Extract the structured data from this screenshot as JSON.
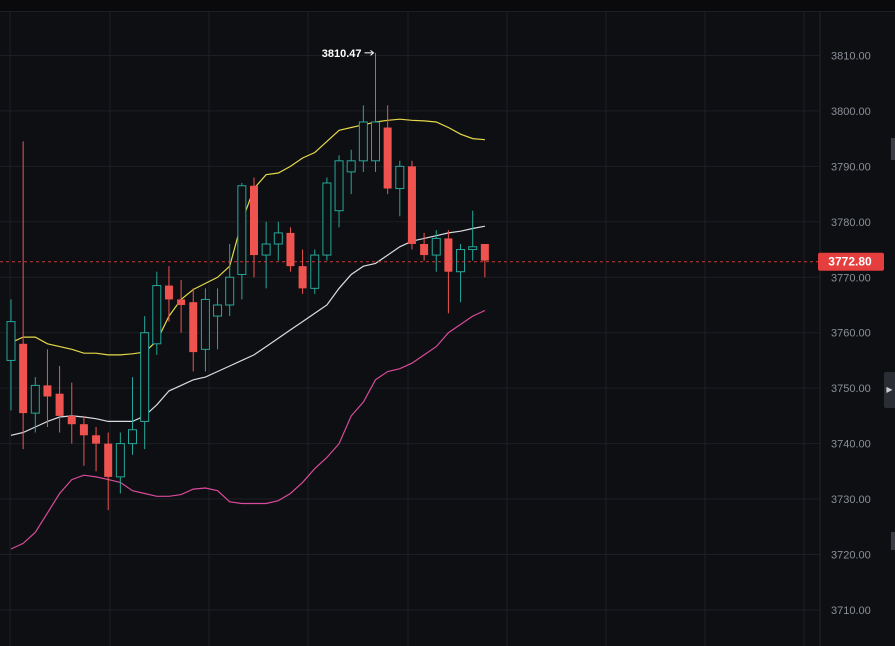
{
  "chart_data": {
    "type": "candlestick",
    "y_axis": {
      "ticks": [
        "3810.00",
        "3800.00",
        "3790.00",
        "3780.00",
        "3770.00",
        "3760.00",
        "3750.00",
        "3740.00",
        "3730.00",
        "3720.00",
        "3710.00"
      ],
      "range": [
        3703.5,
        3820
      ]
    },
    "current_price": {
      "value": 3772.8,
      "label": "3772.80"
    },
    "high_annotation": {
      "value": 3810.47,
      "label": "3810.47"
    },
    "candles": [
      {
        "open": 3755.0,
        "high": 3766.0,
        "low": 3746.0,
        "close": 3762.0
      },
      {
        "open": 3758.0,
        "high": 3794.5,
        "low": 3739.0,
        "close": 3745.5
      },
      {
        "open": 3745.5,
        "high": 3752.0,
        "low": 3742.0,
        "close": 3750.5
      },
      {
        "open": 3750.5,
        "high": 3757.0,
        "low": 3743.0,
        "close": 3748.5
      },
      {
        "open": 3749.0,
        "high": 3754.0,
        "low": 3742.0,
        "close": 3745.0
      },
      {
        "open": 3745.0,
        "high": 3751.0,
        "low": 3740.0,
        "close": 3743.5
      },
      {
        "open": 3743.5,
        "high": 3745.0,
        "low": 3736.0,
        "close": 3741.5
      },
      {
        "open": 3741.5,
        "high": 3743.0,
        "low": 3735.0,
        "close": 3740.0
      },
      {
        "open": 3740.0,
        "high": 3742.0,
        "low": 3728.0,
        "close": 3734.0
      },
      {
        "open": 3734.0,
        "high": 3742.0,
        "low": 3731.0,
        "close": 3740.0
      },
      {
        "open": 3740.0,
        "high": 3752.0,
        "low": 3738.0,
        "close": 3742.5
      },
      {
        "open": 3744.0,
        "high": 3763.0,
        "low": 3739.0,
        "close": 3760.0
      },
      {
        "open": 3758.0,
        "high": 3771.0,
        "low": 3756.0,
        "close": 3768.5
      },
      {
        "open": 3768.5,
        "high": 3772.0,
        "low": 3762.0,
        "close": 3766.0
      },
      {
        "open": 3766.0,
        "high": 3769.5,
        "low": 3760.0,
        "close": 3765.0
      },
      {
        "open": 3765.5,
        "high": 3768.0,
        "low": 3753.0,
        "close": 3756.5
      },
      {
        "open": 3757.0,
        "high": 3768.0,
        "low": 3753.0,
        "close": 3766.0
      },
      {
        "open": 3763.0,
        "high": 3768.0,
        "low": 3757.0,
        "close": 3765.0
      },
      {
        "open": 3765.0,
        "high": 3776.0,
        "low": 3763.0,
        "close": 3770.0
      },
      {
        "open": 3770.5,
        "high": 3787.0,
        "low": 3766.0,
        "close": 3786.5
      },
      {
        "open": 3786.5,
        "high": 3788.0,
        "low": 3770.0,
        "close": 3774.0
      },
      {
        "open": 3774.0,
        "high": 3780.0,
        "low": 3768.0,
        "close": 3776.0
      },
      {
        "open": 3776.0,
        "high": 3780.0,
        "low": 3773.0,
        "close": 3778.0
      },
      {
        "open": 3778.0,
        "high": 3779.0,
        "low": 3771.0,
        "close": 3772.0
      },
      {
        "open": 3772.0,
        "high": 3775.0,
        "low": 3767.0,
        "close": 3768.0
      },
      {
        "open": 3768.0,
        "high": 3775.0,
        "low": 3767.0,
        "close": 3774.0
      },
      {
        "open": 3774.0,
        "high": 3788.0,
        "low": 3773.0,
        "close": 3787.0
      },
      {
        "open": 3782.0,
        "high": 3792.0,
        "low": 3779.0,
        "close": 3791.0
      },
      {
        "open": 3789.0,
        "high": 3793.0,
        "low": 3785.0,
        "close": 3791.0
      },
      {
        "open": 3791.0,
        "high": 3801.0,
        "low": 3789.0,
        "close": 3798.0
      },
      {
        "open": 3791.0,
        "high": 3810.47,
        "low": 3789.0,
        "close": 3798.0
      },
      {
        "open": 3797.0,
        "high": 3801.0,
        "low": 3785.0,
        "close": 3786.0
      },
      {
        "open": 3786.0,
        "high": 3791.0,
        "low": 3781.0,
        "close": 3790.0
      },
      {
        "open": 3790.0,
        "high": 3791.0,
        "low": 3775.0,
        "close": 3776.0
      },
      {
        "open": 3776.0,
        "high": 3778.0,
        "low": 3773.0,
        "close": 3774.0
      },
      {
        "open": 3774.0,
        "high": 3778.5,
        "low": 3771.0,
        "close": 3777.0
      },
      {
        "open": 3777.0,
        "high": 3778.5,
        "low": 3763.5,
        "close": 3771.0
      },
      {
        "open": 3771.0,
        "high": 3776.0,
        "low": 3765.5,
        "close": 3775.0
      },
      {
        "open": 3775.0,
        "high": 3782.0,
        "low": 3773.0,
        "close": 3775.5
      },
      {
        "open": 3776.0,
        "high": 3776.0,
        "low": 3770.0,
        "close": 3773.0
      }
    ],
    "bollinger": {
      "upper": [
        3758.2,
        3759.2,
        3759.2,
        3758.0,
        3757.5,
        3757.0,
        3756.3,
        3756.3,
        3756.0,
        3756.0,
        3756.2,
        3756.5,
        3758.5,
        3763.0,
        3766.0,
        3767.8,
        3768.9,
        3770.0,
        3772.0,
        3780.0,
        3786.0,
        3788.5,
        3788.8,
        3790.0,
        3791.5,
        3792.5,
        3794.5,
        3796.5,
        3797.0,
        3797.5,
        3798.0,
        3798.3,
        3798.5,
        3798.3,
        3798.2,
        3798.0,
        3797.0,
        3795.8,
        3795.0,
        3794.8
      ],
      "middle": [
        3741.5,
        3742.0,
        3743.0,
        3744.0,
        3744.8,
        3745.0,
        3744.8,
        3744.5,
        3744.0,
        3744.0,
        3744.0,
        3745.0,
        3747.0,
        3749.5,
        3750.5,
        3751.5,
        3752.0,
        3753.0,
        3754.0,
        3755.0,
        3756.0,
        3757.5,
        3759.0,
        3760.5,
        3762.0,
        3763.5,
        3765.0,
        3768.0,
        3770.5,
        3772.0,
        3772.5,
        3774.0,
        3775.5,
        3776.5,
        3777.0,
        3777.5,
        3778.0,
        3778.3,
        3778.8,
        3779.2
      ],
      "lower": [
        3721.0,
        3722.0,
        3724.0,
        3727.5,
        3731.0,
        3733.5,
        3734.3,
        3734.0,
        3733.5,
        3733.0,
        3731.5,
        3731.0,
        3730.5,
        3730.5,
        3730.8,
        3731.8,
        3732.0,
        3731.5,
        3729.5,
        3729.2,
        3729.2,
        3729.2,
        3729.7,
        3731.0,
        3733.0,
        3735.5,
        3737.5,
        3740.0,
        3745.0,
        3747.5,
        3751.5,
        3753.0,
        3753.5,
        3754.5,
        3756.0,
        3757.5,
        3760.0,
        3761.5,
        3763.0,
        3764.0
      ]
    },
    "colors": {
      "up": "#26a69a",
      "down": "#ef5350",
      "upper_band": "#e5d84a",
      "middle_band": "#d9dce2",
      "lower_band": "#d84a9b",
      "price_label_bg": "#e53e3e",
      "grid": "#1c1f25",
      "axis_text": "#8b8f98"
    }
  }
}
